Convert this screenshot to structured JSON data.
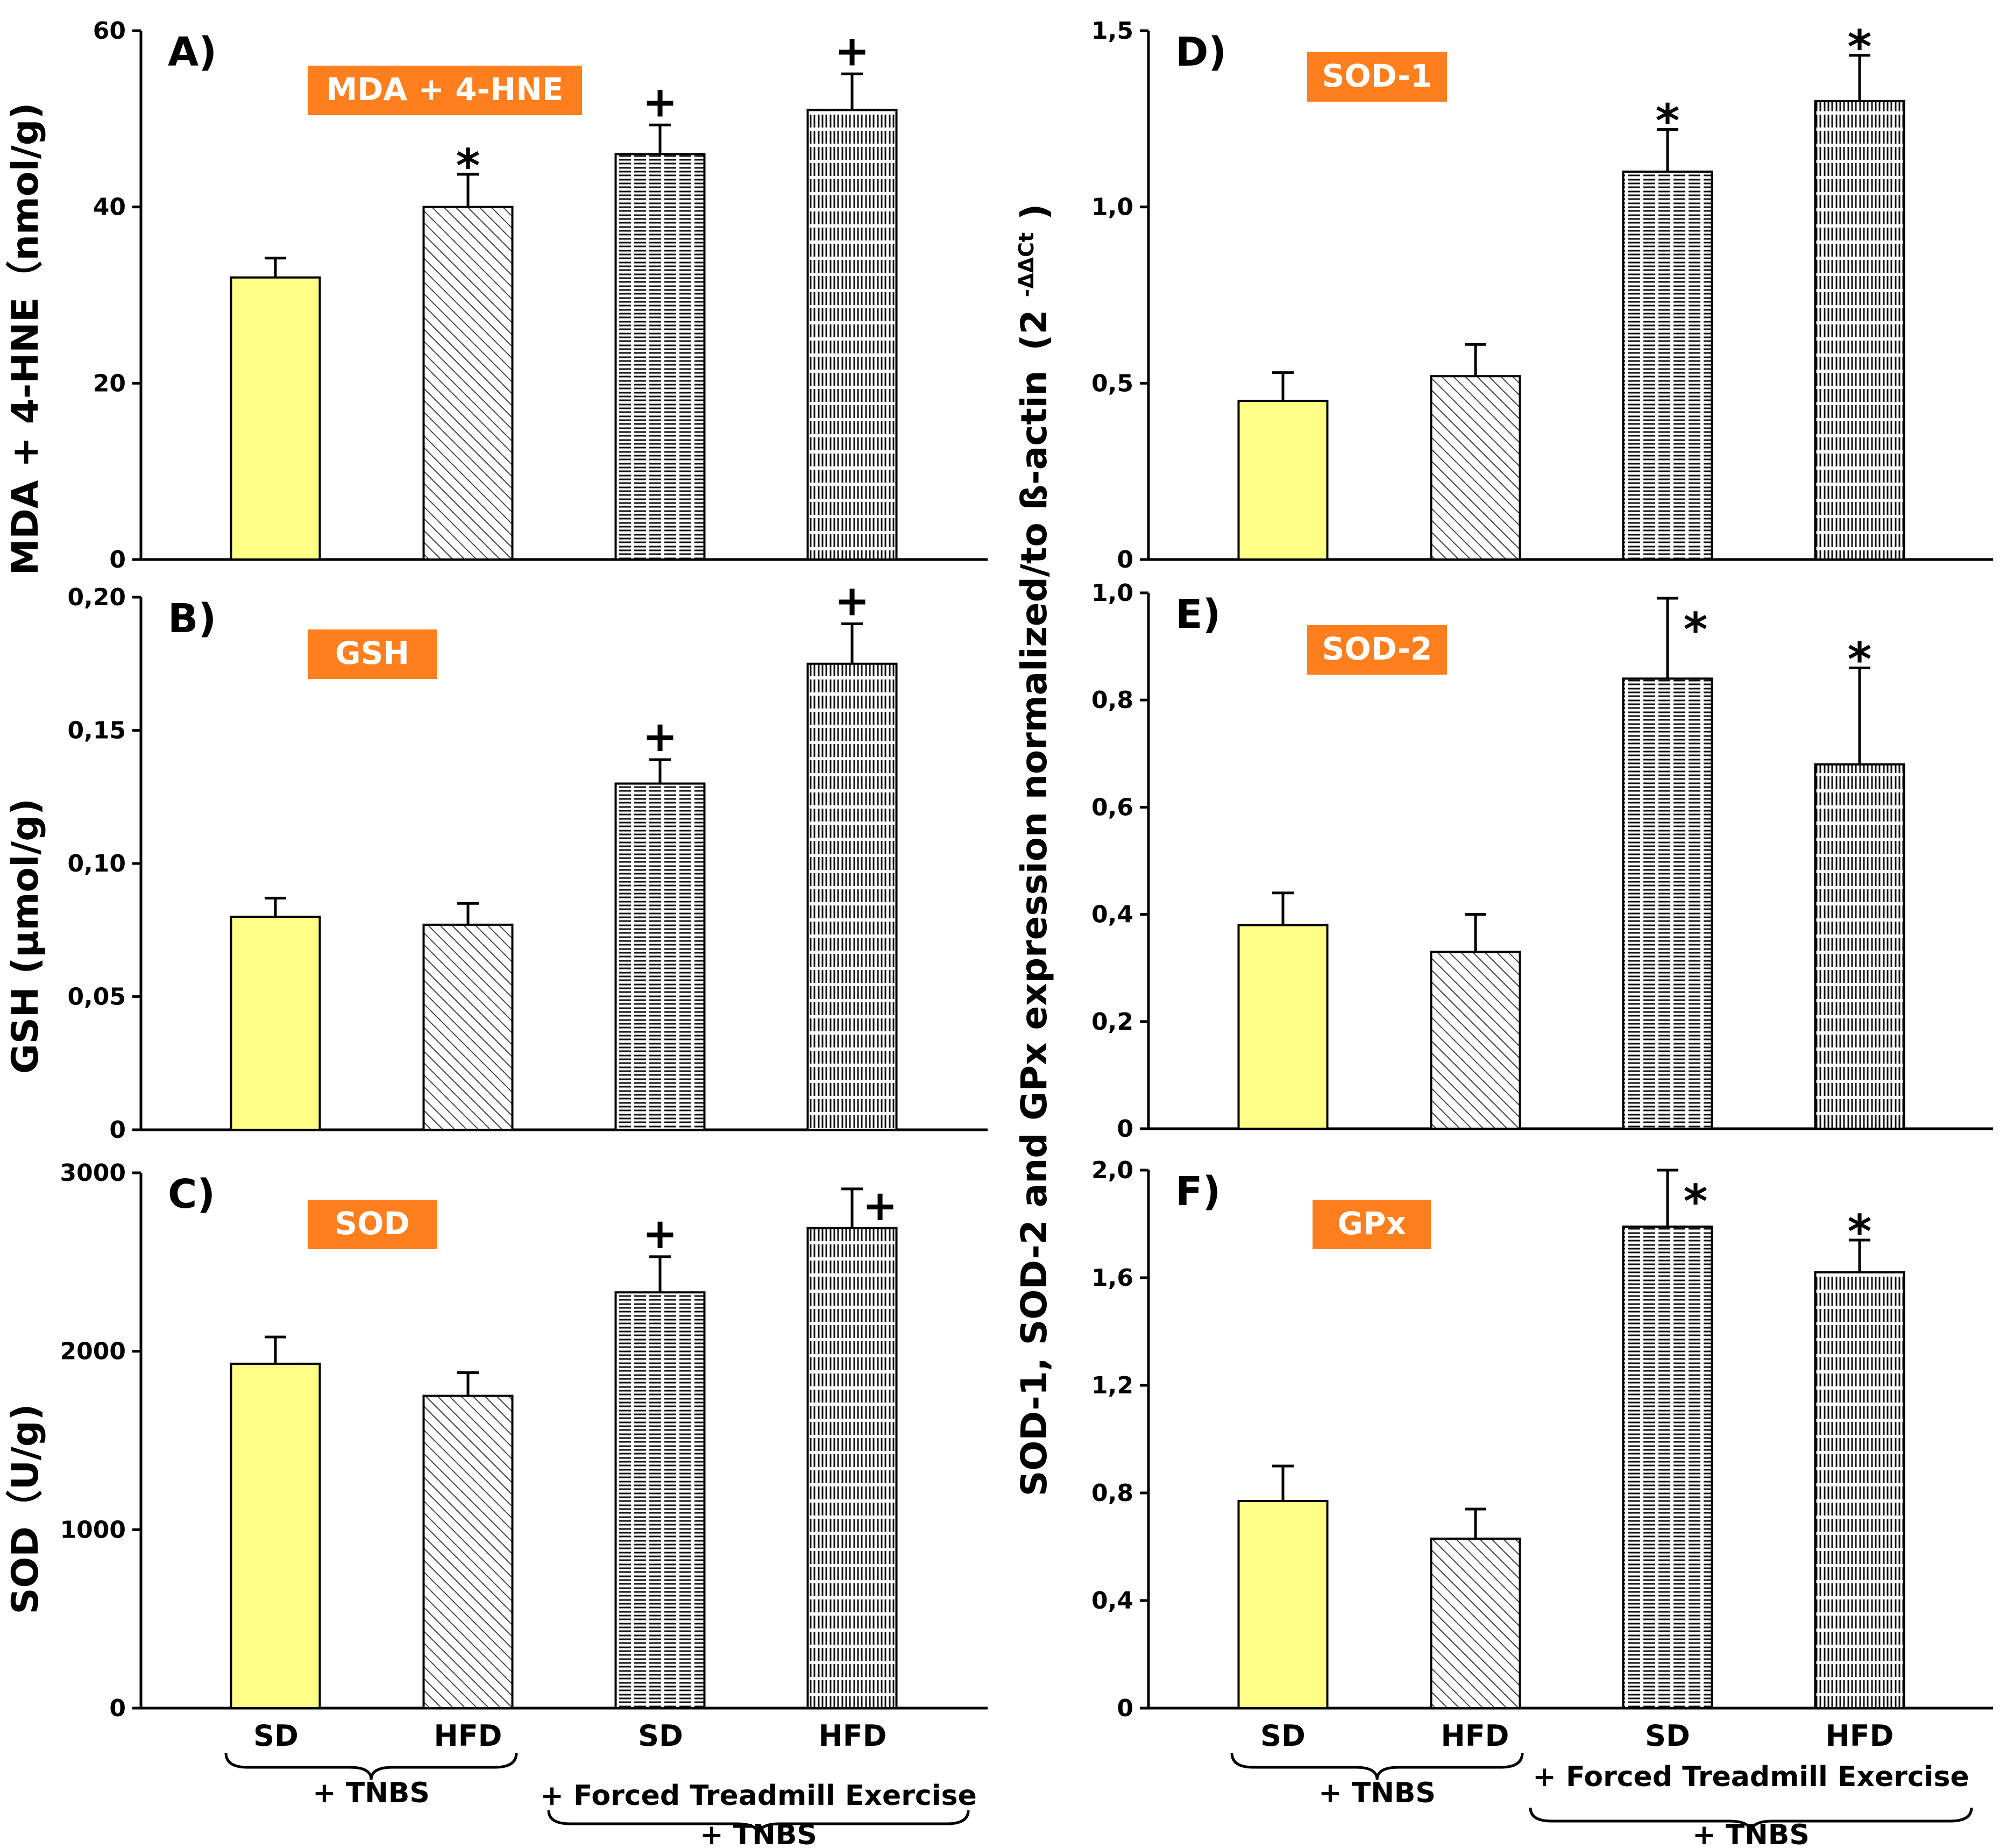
{
  "colors": {
    "bar_yellow": "#ffff88",
    "label_box": "#ff7f1e",
    "label_text": "#ffffff",
    "axis": "#000000"
  },
  "patterns": [
    "solid",
    "diagonal",
    "hlines",
    "vlines"
  ],
  "chart_data": [
    {
      "panel": "A)",
      "label": "MDA + 4-HNE",
      "ylabel": "MDA + 4-HNE（nmol/g)",
      "type": "bar",
      "ylim": [
        0,
        60
      ],
      "ticks": [
        0,
        20,
        40,
        60
      ],
      "tick_labels": [
        "0",
        "20",
        "40",
        "60"
      ],
      "categories": [
        "SD",
        "HFD",
        "SD",
        "HFD"
      ],
      "values": [
        32,
        40,
        46,
        51
      ],
      "errors": [
        2.2,
        3.7,
        3.3,
        4.1
      ],
      "marks": [
        "",
        "*",
        "+",
        "+"
      ]
    },
    {
      "panel": "B)",
      "label": "GSH",
      "ylabel": "GSH (μmol/g)",
      "type": "bar",
      "ylim": [
        0,
        0.2
      ],
      "ticks": [
        0,
        0.05,
        0.1,
        0.15,
        0.2
      ],
      "tick_labels": [
        "0",
        "0,05",
        "0,10",
        "0,15",
        "0,20"
      ],
      "categories": [
        "SD",
        "HFD",
        "SD",
        "HFD"
      ],
      "values": [
        0.08,
        0.077,
        0.13,
        0.175
      ],
      "errors": [
        0.007,
        0.008,
        0.009,
        0.015
      ],
      "marks": [
        "",
        "",
        "+",
        "+"
      ]
    },
    {
      "panel": "C)",
      "label": "SOD",
      "ylabel": "SOD（U/g)",
      "type": "bar",
      "ylim": [
        0,
        3000
      ],
      "ticks": [
        0,
        1000,
        2000,
        3000
      ],
      "tick_labels": [
        "0",
        "1000",
        "2000",
        "3000"
      ],
      "categories": [
        "SD",
        "HFD",
        "SD",
        "HFD"
      ],
      "values": [
        1930,
        1750,
        2330,
        2690
      ],
      "errors": [
        150,
        130,
        200,
        220
      ],
      "marks": [
        "",
        "",
        "+",
        "+"
      ]
    },
    {
      "panel": "D)",
      "label": "SOD-1",
      "type": "bar",
      "ylim": [
        0,
        1.5
      ],
      "ticks": [
        0,
        0.5,
        1.0,
        1.5
      ],
      "tick_labels": [
        "0",
        "0,5",
        "1,0",
        "1,5"
      ],
      "categories": [
        "SD",
        "HFD",
        "SD",
        "HFD"
      ],
      "values": [
        0.45,
        0.52,
        1.1,
        1.3
      ],
      "errors": [
        0.08,
        0.09,
        0.12,
        0.13
      ],
      "marks": [
        "",
        "",
        "*",
        "*"
      ]
    },
    {
      "panel": "E)",
      "label": "SOD-2",
      "type": "bar",
      "ylim": [
        0,
        1.0
      ],
      "ticks": [
        0,
        0.2,
        0.4,
        0.6,
        0.8,
        1.0
      ],
      "tick_labels": [
        "0",
        "0,2",
        "0,4",
        "0,6",
        "0,8",
        "1,0"
      ],
      "categories": [
        "SD",
        "HFD",
        "SD",
        "HFD"
      ],
      "values": [
        0.38,
        0.33,
        0.84,
        0.68
      ],
      "errors": [
        0.06,
        0.07,
        0.15,
        0.18
      ],
      "marks": [
        "",
        "",
        "*",
        "*"
      ]
    },
    {
      "panel": "F)",
      "label": "GPx",
      "type": "bar",
      "ylim": [
        0,
        2.0
      ],
      "ticks": [
        0,
        0.4,
        0.8,
        1.2,
        1.6,
        2.0
      ],
      "tick_labels": [
        "0",
        "0,4",
        "0,8",
        "1,2",
        "1,6",
        "2,0"
      ],
      "categories": [
        "SD",
        "HFD",
        "SD",
        "HFD"
      ],
      "values": [
        0.77,
        0.63,
        1.79,
        1.62
      ],
      "errors": [
        0.13,
        0.11,
        0.21,
        0.12
      ],
      "marks": [
        "",
        "",
        "*",
        "*"
      ]
    }
  ],
  "right_ylabel_prefix": "SOD-1, SOD-2 and GPx expression normalized/to ß-actin",
  "right_ylabel_formula": {
    "open": "(2",
    "superscript": "-ΔΔCt",
    "close": ")"
  },
  "x_groups": {
    "left_group_label": "+ TNBS",
    "right_group_label": "+ Forced Treadmill Exercise",
    "right_group_sublabel": "+ TNBS"
  }
}
